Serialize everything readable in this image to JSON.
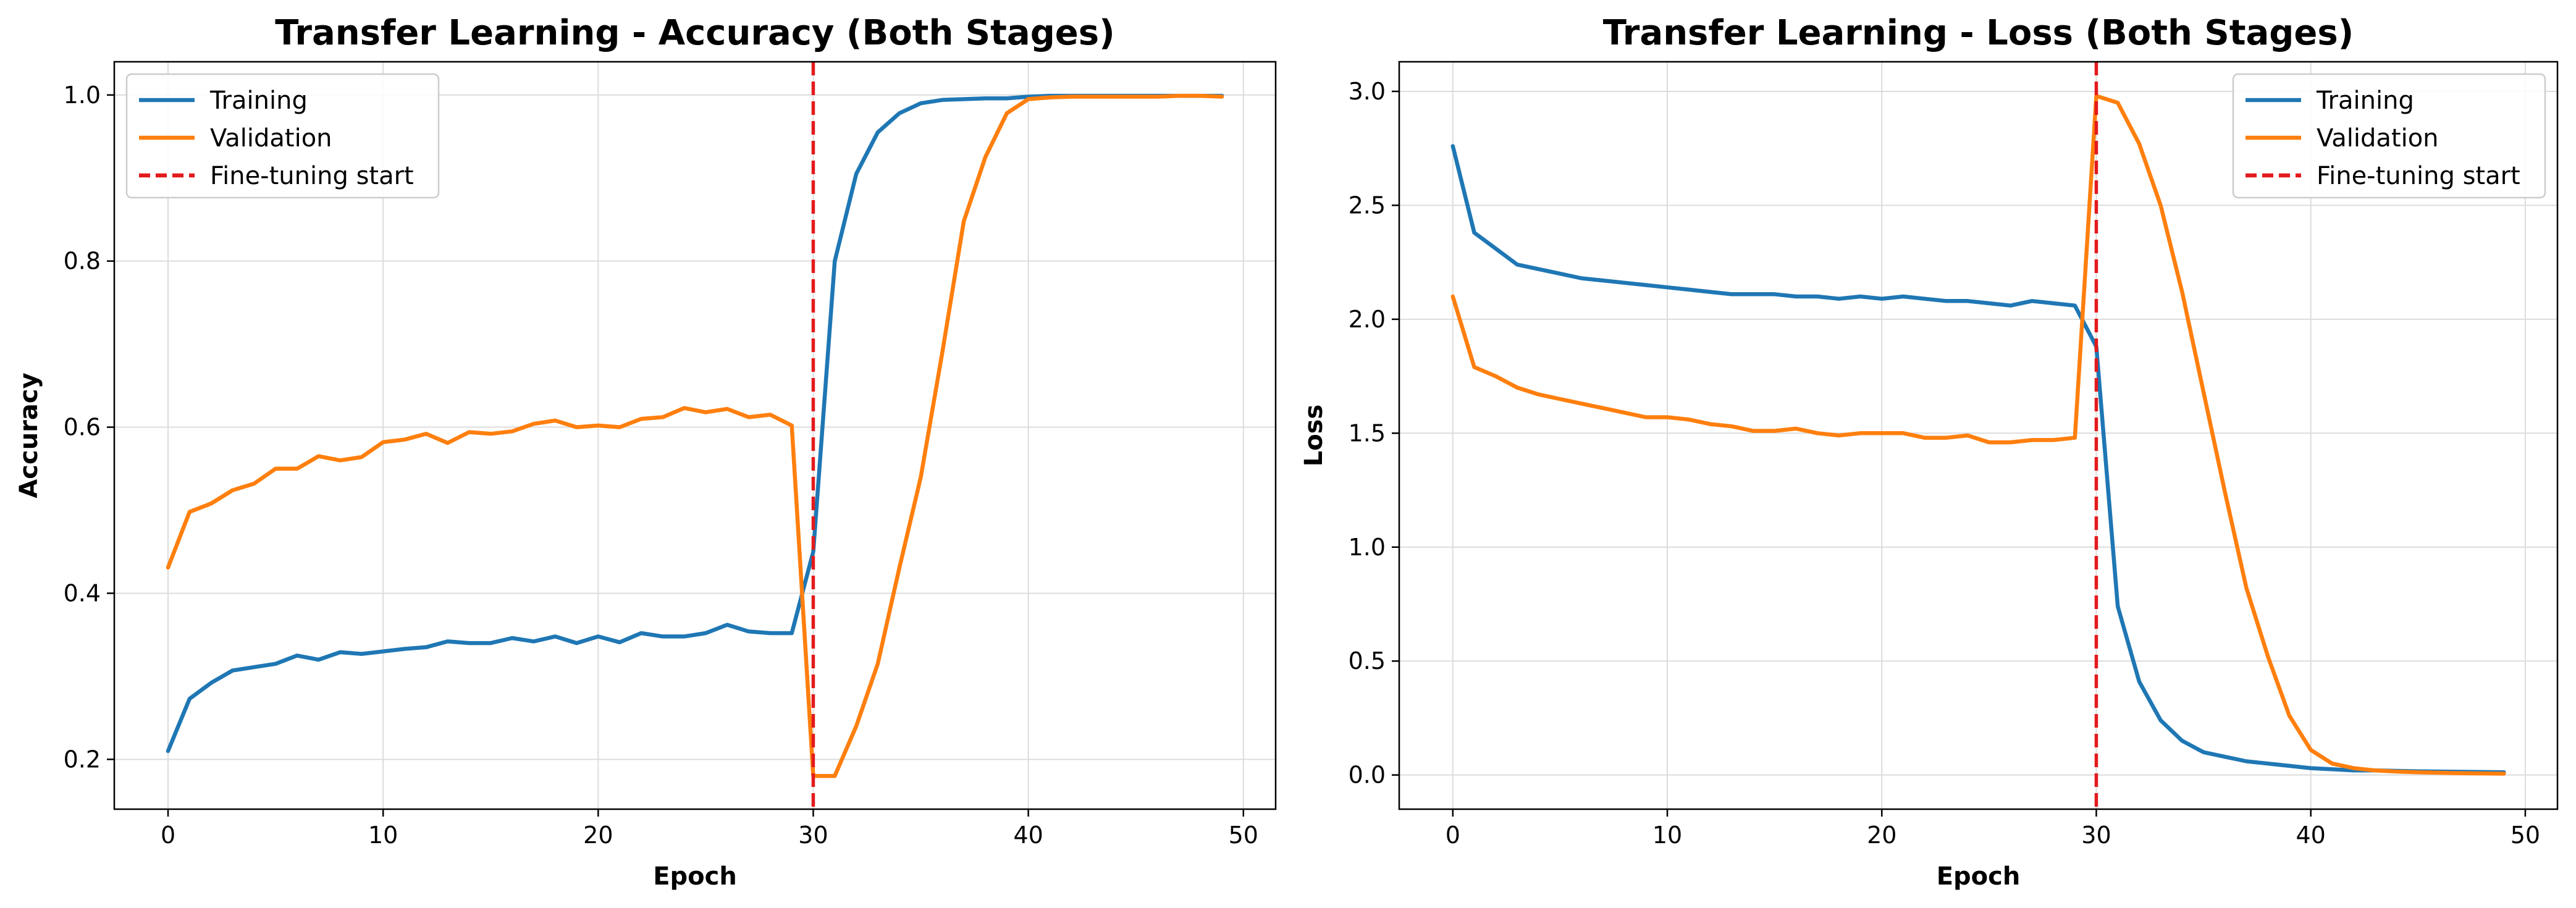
{
  "colors": {
    "training": "#1f77b4",
    "validation": "#ff7f0e",
    "finetune": "#e41a1c",
    "grid": "#dcdcdc"
  },
  "chart_data": [
    {
      "type": "line",
      "title": "Transfer Learning - Accuracy (Both Stages)",
      "xlabel": "Epoch",
      "ylabel": "Accuracy",
      "xlim": [
        -2.5,
        51.5
      ],
      "ylim": [
        0.14,
        1.04
      ],
      "xticks": [
        0,
        10,
        20,
        30,
        40,
        50
      ],
      "yticks": [
        0.2,
        0.4,
        0.6,
        0.8,
        1.0
      ],
      "xtick_labels": [
        "0",
        "10",
        "20",
        "30",
        "40",
        "50"
      ],
      "ytick_labels": [
        "0.2",
        "0.4",
        "0.6",
        "0.8",
        "1.0"
      ],
      "grid": true,
      "legend_position": "top-left",
      "legend": [
        "Training",
        "Validation",
        "Fine-tuning start"
      ],
      "vline": {
        "x": 30,
        "label": "Fine-tuning start",
        "style": "dashed"
      },
      "x": [
        0,
        1,
        2,
        3,
        4,
        5,
        6,
        7,
        8,
        9,
        10,
        11,
        12,
        13,
        14,
        15,
        16,
        17,
        18,
        19,
        20,
        21,
        22,
        23,
        24,
        25,
        26,
        27,
        28,
        29,
        30,
        31,
        32,
        33,
        34,
        35,
        36,
        37,
        38,
        39,
        40,
        41,
        42,
        43,
        44,
        45,
        46,
        47,
        48,
        49
      ],
      "series": [
        {
          "name": "Training",
          "values": [
            0.21,
            0.273,
            0.292,
            0.307,
            0.311,
            0.315,
            0.325,
            0.32,
            0.329,
            0.327,
            0.33,
            0.333,
            0.335,
            0.342,
            0.34,
            0.34,
            0.346,
            0.342,
            0.348,
            0.34,
            0.348,
            0.341,
            0.352,
            0.348,
            0.348,
            0.352,
            0.362,
            0.354,
            0.352,
            0.352,
            0.45,
            0.8,
            0.905,
            0.955,
            0.978,
            0.99,
            0.994,
            0.995,
            0.996,
            0.996,
            0.998,
            0.999,
            0.999,
            0.999,
            0.999,
            0.999,
            0.999,
            0.999,
            0.999,
            0.999
          ]
        },
        {
          "name": "Validation",
          "values": [
            0.431,
            0.498,
            0.508,
            0.524,
            0.532,
            0.55,
            0.55,
            0.565,
            0.56,
            0.564,
            0.582,
            0.585,
            0.592,
            0.581,
            0.594,
            0.592,
            0.595,
            0.604,
            0.608,
            0.6,
            0.602,
            0.6,
            0.61,
            0.612,
            0.623,
            0.618,
            0.622,
            0.612,
            0.615,
            0.602,
            0.18,
            0.18,
            0.24,
            0.315,
            0.43,
            0.54,
            0.69,
            0.848,
            0.925,
            0.978,
            0.995,
            0.997,
            0.998,
            0.998,
            0.998,
            0.998,
            0.998,
            0.999,
            0.999,
            0.998
          ]
        }
      ]
    },
    {
      "type": "line",
      "title": "Transfer Learning - Loss (Both Stages)",
      "xlabel": "Epoch",
      "ylabel": "Loss",
      "xlim": [
        -2.5,
        51.5
      ],
      "ylim": [
        -0.15,
        3.13
      ],
      "xticks": [
        0,
        10,
        20,
        30,
        40,
        50
      ],
      "yticks": [
        0.0,
        0.5,
        1.0,
        1.5,
        2.0,
        2.5,
        3.0
      ],
      "xtick_labels": [
        "0",
        "10",
        "20",
        "30",
        "40",
        "50"
      ],
      "ytick_labels": [
        "0.0",
        "0.5",
        "1.0",
        "1.5",
        "2.0",
        "2.5",
        "3.0"
      ],
      "grid": true,
      "legend_position": "top-right",
      "legend": [
        "Training",
        "Validation",
        "Fine-tuning start"
      ],
      "vline": {
        "x": 30,
        "label": "Fine-tuning start",
        "style": "dashed"
      },
      "x": [
        0,
        1,
        2,
        3,
        4,
        5,
        6,
        7,
        8,
        9,
        10,
        11,
        12,
        13,
        14,
        15,
        16,
        17,
        18,
        19,
        20,
        21,
        22,
        23,
        24,
        25,
        26,
        27,
        28,
        29,
        30,
        31,
        32,
        33,
        34,
        35,
        36,
        37,
        38,
        39,
        40,
        41,
        42,
        43,
        44,
        45,
        46,
        47,
        48,
        49
      ],
      "series": [
        {
          "name": "Training",
          "values": [
            2.76,
            2.38,
            2.31,
            2.24,
            2.22,
            2.2,
            2.18,
            2.17,
            2.16,
            2.15,
            2.14,
            2.13,
            2.12,
            2.11,
            2.11,
            2.11,
            2.1,
            2.1,
            2.09,
            2.1,
            2.09,
            2.1,
            2.09,
            2.08,
            2.08,
            2.07,
            2.06,
            2.08,
            2.07,
            2.06,
            1.88,
            0.74,
            0.41,
            0.24,
            0.15,
            0.1,
            0.08,
            0.06,
            0.05,
            0.04,
            0.03,
            0.025,
            0.02,
            0.02,
            0.018,
            0.016,
            0.015,
            0.014,
            0.013,
            0.012
          ]
        },
        {
          "name": "Validation",
          "values": [
            2.1,
            1.79,
            1.75,
            1.7,
            1.67,
            1.65,
            1.63,
            1.61,
            1.59,
            1.57,
            1.57,
            1.56,
            1.54,
            1.53,
            1.51,
            1.51,
            1.52,
            1.5,
            1.49,
            1.5,
            1.5,
            1.5,
            1.48,
            1.48,
            1.49,
            1.46,
            1.46,
            1.47,
            1.47,
            1.48,
            2.98,
            2.95,
            2.77,
            2.5,
            2.12,
            1.68,
            1.24,
            0.82,
            0.52,
            0.26,
            0.11,
            0.05,
            0.03,
            0.02,
            0.015,
            0.012,
            0.01,
            0.008,
            0.007,
            0.006
          ]
        }
      ]
    }
  ]
}
